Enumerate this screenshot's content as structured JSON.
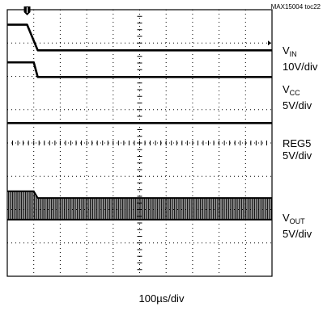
{
  "figure_id": "MAX15004 toc22",
  "timebase": "100µs/div",
  "chart_data": {
    "type": "line",
    "title": "",
    "xlabel": "100µs/div",
    "ylabel": "",
    "grid": true,
    "divisions": {
      "x": 10,
      "y": 8
    },
    "time_per_div_us": 100,
    "trigger_time_div": 0.75,
    "series": [
      {
        "name": "VIN",
        "scale": "10V/div",
        "points": [
          [
            0,
            7.55
          ],
          [
            0.75,
            7.55
          ],
          [
            1.15,
            6.78
          ],
          [
            10,
            6.78
          ]
        ],
        "style": "solid"
      },
      {
        "name": "VCC",
        "scale": "5V/div",
        "points": [
          [
            0,
            6.42
          ],
          [
            1.0,
            6.42
          ],
          [
            1.15,
            5.98
          ],
          [
            10,
            5.98
          ]
        ],
        "style": "solid"
      },
      {
        "name": "REG5",
        "scale": "5V/div",
        "points": [
          [
            0,
            4.6
          ],
          [
            10,
            4.6
          ]
        ],
        "style": "solid"
      },
      {
        "name": "VOUT",
        "scale": "5V/div",
        "band": [
          [
            0,
            1.7,
            2.55
          ],
          [
            1.0,
            1.7,
            2.55
          ],
          [
            1.15,
            1.7,
            2.35
          ],
          [
            10,
            1.7,
            2.35
          ]
        ],
        "style": "switching"
      }
    ]
  },
  "labels": [
    {
      "main": "V",
      "sub": "IN",
      "scale": "10V/div"
    },
    {
      "main": "V",
      "sub": "CC",
      "scale": "5V/div"
    },
    {
      "main": "REG5",
      "sub": "",
      "scale": "5V/div"
    },
    {
      "main": "V",
      "sub": "OUT",
      "scale": "5V/div"
    }
  ]
}
